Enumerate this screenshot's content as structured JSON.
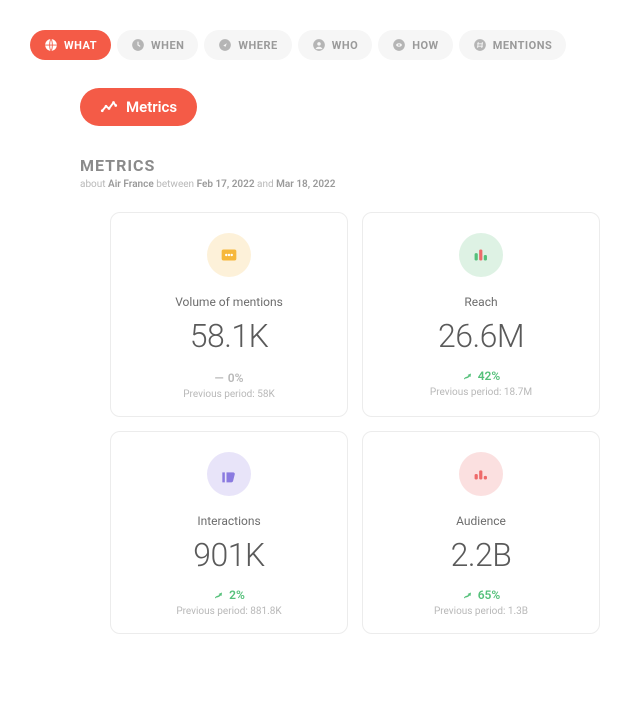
{
  "colors": {
    "accent": "#f45b47",
    "tab_bg": "#f6f6f6",
    "tab_text": "#9a9a9a",
    "positive": "#55c07a",
    "neutral": "#b8b8b8",
    "card_border": "#ececec",
    "text_main": "#5a5a5a"
  },
  "tabs": [
    {
      "label": "WHAT",
      "active": true
    },
    {
      "label": "WHEN",
      "active": false
    },
    {
      "label": "WHERE",
      "active": false
    },
    {
      "label": "WHO",
      "active": false
    },
    {
      "label": "HOW",
      "active": false
    },
    {
      "label": "MENTIONS",
      "active": false
    }
  ],
  "chip": {
    "label": "Metrics"
  },
  "header": {
    "title": "METRICS",
    "about_prefix": "about",
    "subject": "Air France",
    "between_word": "between",
    "date_from": "Feb 17, 2022",
    "and_word": "and",
    "date_to": "Mar 18, 2022"
  },
  "cards": [
    {
      "name": "volume",
      "label": "Volume of mentions",
      "value": "58.1K",
      "change_text": "0%",
      "trend": "flat",
      "trend_symbol": "—",
      "prev_label": "Previous period: 58K",
      "icon_bg": "#fdf1d9",
      "icon_fill": "#f6b83c",
      "trend_color": "#b8b8b8"
    },
    {
      "name": "reach",
      "label": "Reach",
      "value": "26.6M",
      "change_text": "42%",
      "trend": "up",
      "prev_label": "Previous period: 18.7M",
      "icon_bg": "#def2e4",
      "icon_fill": "#55c07a",
      "trend_color": "#55c07a"
    },
    {
      "name": "interactions",
      "label": "Interactions",
      "value": "901K",
      "change_text": "2%",
      "trend": "up",
      "prev_label": "Previous period: 881.8K",
      "icon_bg": "#e8e4f9",
      "icon_fill": "#8a7ae0",
      "trend_color": "#55c07a"
    },
    {
      "name": "audience",
      "label": "Audience",
      "value": "2.2B",
      "change_text": "65%",
      "trend": "up",
      "prev_label": "Previous period: 1.3B",
      "icon_bg": "#fbe0e0",
      "icon_fill": "#ee6a6a",
      "trend_color": "#55c07a"
    }
  ]
}
